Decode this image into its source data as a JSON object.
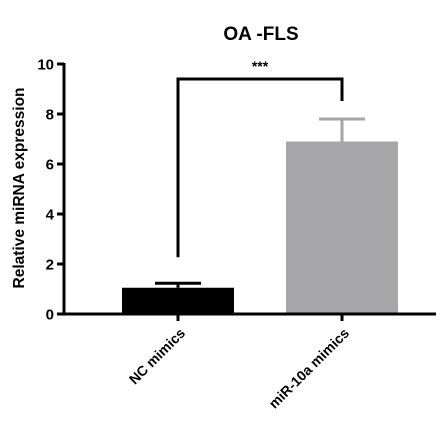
{
  "chart_data": {
    "type": "bar",
    "title": "OA -FLS",
    "xlabel": "",
    "ylabel": "Relative miRNA expression",
    "ylim": [
      0,
      10
    ],
    "yticks": [
      0,
      2,
      4,
      6,
      8,
      10
    ],
    "categories": [
      "NC mimics",
      "miR-10a mimics"
    ],
    "values": [
      1.05,
      6.9
    ],
    "errors": [
      0.18,
      0.9
    ],
    "colors": [
      "#000000",
      "#a6a6a8"
    ],
    "grid": false,
    "legend": "none",
    "annotation": {
      "text": "***",
      "between": [
        "NC mimics",
        "miR-10a mimics"
      ]
    }
  }
}
